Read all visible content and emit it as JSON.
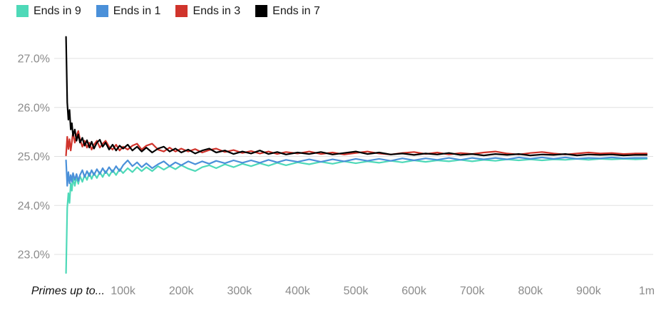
{
  "page": {
    "background": "#ffffff"
  },
  "legend": {
    "position": "top-left",
    "items": [
      {
        "label": "Ends in 9",
        "color": "#4ed9b8"
      },
      {
        "label": "Ends in 1",
        "color": "#4a90d9"
      },
      {
        "label": "Ends in 3",
        "color": "#d0342c"
      },
      {
        "label": "Ends in 7",
        "color": "#000000"
      }
    ]
  },
  "colors": {
    "gridline": "#e0e0e0",
    "tick_label": "#8b8b8b",
    "axis_title": "#111111"
  },
  "chart_data": {
    "type": "line",
    "title": "",
    "xlabel": "Primes up to...",
    "ylabel": "",
    "xlim": [
      0,
      1000000
    ],
    "ylim": [
      22.5,
      27.5
    ],
    "grid": "horizontal",
    "legend_position": "top-left",
    "yticks": {
      "values": [
        27,
        26,
        25,
        24,
        23
      ],
      "labels": [
        "27.0%",
        "26.0%",
        "25.0%",
        "24.0%",
        "23.0%"
      ]
    },
    "xticks": {
      "values": [
        100000,
        200000,
        300000,
        400000,
        500000,
        600000,
        700000,
        800000,
        900000,
        1000000
      ],
      "labels": [
        "100k",
        "200k",
        "300k",
        "400k",
        "500k",
        "600k",
        "700k",
        "800k",
        "900k",
        "1m"
      ]
    },
    "x": [
      2000,
      4000,
      6000,
      8000,
      10000,
      12000,
      14000,
      17000,
      20000,
      23000,
      26000,
      30000,
      34000,
      38000,
      42000,
      46000,
      50000,
      55000,
      60000,
      65000,
      70000,
      76000,
      82000,
      88000,
      94000,
      100000,
      108000,
      116000,
      124000,
      132000,
      140000,
      150000,
      160000,
      170000,
      180000,
      190000,
      200000,
      212000,
      224000,
      236000,
      248000,
      260000,
      275000,
      290000,
      305000,
      320000,
      335000,
      350000,
      365000,
      380000,
      400000,
      420000,
      440000,
      460000,
      480000,
      500000,
      520000,
      540000,
      560000,
      580000,
      600000,
      620000,
      640000,
      660000,
      680000,
      700000,
      720000,
      740000,
      760000,
      780000,
      800000,
      820000,
      840000,
      860000,
      880000,
      900000,
      920000,
      940000,
      960000,
      980000,
      1000000
    ],
    "series": [
      {
        "name": "Ends in 9",
        "color": "#4ed9b8",
        "values": [
          22.62,
          23.95,
          24.25,
          24.05,
          24.45,
          24.3,
          24.55,
          24.4,
          24.58,
          24.44,
          24.6,
          24.48,
          24.62,
          24.52,
          24.66,
          24.54,
          24.66,
          24.56,
          24.68,
          24.58,
          24.7,
          24.6,
          24.72,
          24.62,
          24.74,
          24.66,
          24.76,
          24.68,
          24.78,
          24.7,
          24.78,
          24.7,
          24.8,
          24.73,
          24.8,
          24.74,
          24.82,
          24.75,
          24.7,
          24.78,
          24.82,
          24.76,
          24.84,
          24.78,
          24.85,
          24.8,
          24.86,
          24.81,
          24.87,
          24.82,
          24.88,
          24.84,
          24.89,
          24.85,
          24.9,
          24.86,
          24.9,
          24.87,
          24.91,
          24.88,
          24.92,
          24.89,
          24.92,
          24.9,
          24.93,
          24.9,
          24.93,
          24.91,
          24.94,
          24.92,
          24.94,
          24.92,
          24.94,
          24.93,
          24.95,
          24.93,
          24.95,
          24.94,
          24.95,
          24.94,
          24.95
        ]
      },
      {
        "name": "Ends in 1",
        "color": "#4a90d9",
        "values": [
          24.92,
          24.4,
          24.68,
          24.45,
          24.62,
          24.48,
          24.66,
          24.52,
          24.64,
          24.5,
          24.62,
          24.72,
          24.58,
          24.7,
          24.6,
          24.72,
          24.62,
          24.74,
          24.64,
          24.76,
          24.66,
          24.78,
          24.68,
          24.8,
          24.7,
          24.82,
          24.92,
          24.8,
          24.88,
          24.78,
          24.86,
          24.76,
          24.84,
          24.9,
          24.8,
          24.88,
          24.82,
          24.9,
          24.84,
          24.9,
          24.85,
          24.91,
          24.86,
          24.92,
          24.87,
          24.92,
          24.87,
          24.93,
          24.88,
          24.93,
          24.89,
          24.94,
          24.89,
          24.94,
          24.9,
          24.95,
          24.91,
          24.95,
          24.91,
          24.96,
          24.92,
          24.96,
          24.93,
          24.97,
          24.93,
          24.97,
          24.94,
          24.97,
          24.94,
          24.98,
          24.95,
          24.98,
          24.95,
          24.98,
          24.95,
          24.97,
          24.96,
          24.98,
          24.96,
          24.97,
          24.97
        ]
      },
      {
        "name": "Ends in 3",
        "color": "#d0342c",
        "values": [
          25.02,
          25.4,
          25.15,
          25.35,
          25.12,
          25.3,
          25.5,
          25.28,
          25.42,
          25.52,
          25.35,
          25.2,
          25.32,
          25.18,
          25.28,
          25.14,
          25.24,
          25.32,
          25.18,
          25.26,
          25.32,
          25.2,
          25.14,
          25.24,
          25.12,
          25.2,
          25.14,
          25.22,
          25.26,
          25.14,
          25.22,
          25.26,
          25.14,
          25.1,
          25.18,
          25.1,
          25.16,
          25.1,
          25.15,
          25.08,
          25.13,
          25.16,
          25.09,
          25.13,
          25.07,
          25.11,
          25.06,
          25.1,
          25.05,
          25.09,
          25.06,
          25.1,
          25.05,
          25.08,
          25.04,
          25.07,
          25.1,
          25.06,
          25.04,
          25.07,
          25.09,
          25.05,
          25.08,
          25.04,
          25.07,
          25.05,
          25.08,
          25.1,
          25.06,
          25.04,
          25.07,
          25.09,
          25.06,
          25.04,
          25.06,
          25.08,
          25.06,
          25.07,
          25.05,
          25.06,
          25.06
        ]
      },
      {
        "name": "Ends in 7",
        "color": "#000000",
        "values": [
          27.44,
          26.1,
          25.75,
          25.95,
          25.55,
          25.68,
          25.42,
          25.55,
          25.32,
          25.45,
          25.28,
          25.38,
          25.22,
          25.33,
          25.18,
          25.3,
          25.16,
          25.28,
          25.34,
          25.2,
          25.28,
          25.14,
          25.24,
          25.12,
          25.22,
          25.16,
          25.24,
          25.12,
          25.2,
          25.1,
          25.18,
          25.08,
          25.16,
          25.2,
          25.1,
          25.16,
          25.08,
          25.14,
          25.06,
          25.12,
          25.16,
          25.08,
          25.12,
          25.05,
          25.1,
          25.06,
          25.12,
          25.05,
          25.09,
          25.04,
          25.08,
          25.05,
          25.09,
          25.04,
          25.07,
          25.1,
          25.05,
          25.08,
          25.04,
          25.06,
          25.03,
          25.06,
          25.04,
          25.07,
          25.03,
          25.05,
          25.02,
          25.05,
          25.03,
          25.05,
          25.02,
          25.04,
          25.03,
          25.05,
          25.02,
          25.04,
          25.03,
          25.04,
          25.02,
          25.03,
          25.03
        ]
      }
    ]
  }
}
